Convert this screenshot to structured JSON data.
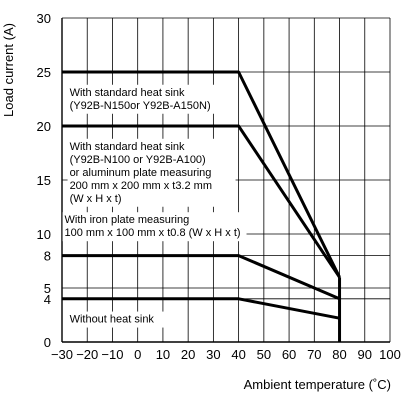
{
  "chart_data": {
    "type": "line",
    "xlabel": "Ambient temperature (˚C)",
    "ylabel": "Load current (A)",
    "xlim": [
      -30,
      100
    ],
    "ylim": [
      0,
      30
    ],
    "x_ticks": [
      "−30",
      "−20",
      "−10",
      "0",
      "10",
      "20",
      "30",
      "40",
      "50",
      "60",
      "70",
      "80",
      "90",
      "100"
    ],
    "x_tick_values": [
      -30,
      -20,
      -10,
      0,
      10,
      20,
      30,
      40,
      50,
      60,
      70,
      80,
      90,
      100
    ],
    "y_ticks": [
      "0",
      "4",
      "5",
      "8",
      "10",
      "15",
      "20",
      "25",
      "30"
    ],
    "y_tick_values": [
      0,
      4,
      5,
      8,
      10,
      15,
      20,
      25,
      30
    ],
    "grid": true,
    "series": [
      {
        "x": [
          -30,
          40,
          80
        ],
        "y": [
          25,
          25,
          6
        ]
      },
      {
        "x": [
          -30,
          40,
          80
        ],
        "y": [
          20,
          20,
          6
        ]
      },
      {
        "x": [
          -30,
          40,
          80
        ],
        "y": [
          8,
          8,
          4
        ]
      },
      {
        "x": [
          -30,
          40,
          80
        ],
        "y": [
          4,
          4,
          2.2
        ]
      }
    ],
    "vertical_segment": {
      "x": 80,
      "y": [
        0,
        6
      ]
    },
    "annotations": [
      {
        "lines": [
          "With standard heat sink",
          "(Y92B-N150or Y92B-A150N)"
        ]
      },
      {
        "lines": [
          "With standard heat sink",
          "(Y92B-N100 or  Y92B-A100)",
          "or aluminum plate measuring",
          "200 mm x 200 mm x t3.2 mm",
          "(W x H x t)"
        ]
      },
      {
        "lines": [
          "With iron plate measuring",
          "100 mm x 100 mm x t0.8 (W x H x t)"
        ]
      },
      {
        "lines": [
          "Without heat sink"
        ]
      }
    ]
  }
}
